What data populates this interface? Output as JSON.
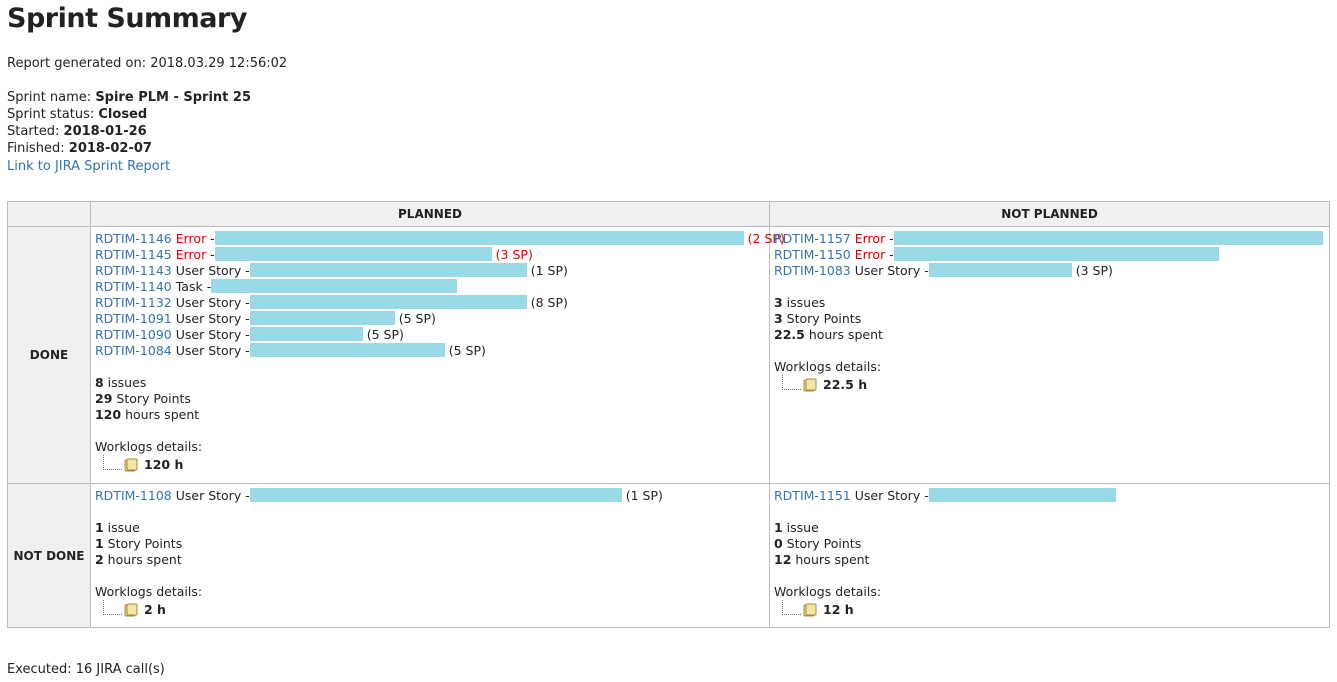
{
  "title": "Sprint Summary",
  "report_generated": {
    "label": "Report generated on: ",
    "value": "2018.03.29 12:56:02"
  },
  "sprint": {
    "name_label": "Sprint name: ",
    "name": "Spire PLM - Sprint 25",
    "status_label": "Sprint status: ",
    "status": "Closed",
    "started_label": "Started: ",
    "started": "2018-01-26",
    "finished_label": "Finished: ",
    "finished": "2018-02-07",
    "jira_link": "Link to JIRA Sprint Report"
  },
  "table": {
    "col_planned": "PLANNED",
    "col_not_planned": "NOT PLANNED",
    "row_done": "DONE",
    "row_not_done": "NOT DONE",
    "worklogs_label": "Worklogs details:",
    "done_planned": {
      "issues": [
        {
          "key": "RDTIM-1146",
          "type": "Error",
          "sp": "(2 SP)",
          "error": true,
          "bar": 0.84
        },
        {
          "key": "RDTIM-1145",
          "type": "Error",
          "sp": "(3 SP)",
          "error": true,
          "bar": 0.44
        },
        {
          "key": "RDTIM-1143",
          "type": "User Story",
          "sp": "(1 SP)",
          "error": false,
          "bar": 0.44
        },
        {
          "key": "RDTIM-1140",
          "type": "Task",
          "sp": "",
          "error": false,
          "bar": 0.39
        },
        {
          "key": "RDTIM-1132",
          "type": "User Story",
          "sp": "(8 SP)",
          "error": false,
          "bar": 0.44
        },
        {
          "key": "RDTIM-1091",
          "type": "User Story",
          "sp": "(5 SP)",
          "error": false,
          "bar": 0.23
        },
        {
          "key": "RDTIM-1090",
          "type": "User Story",
          "sp": "(5 SP)",
          "error": false,
          "bar": 0.18
        },
        {
          "key": "RDTIM-1084",
          "type": "User Story",
          "sp": "(5 SP)",
          "error": false,
          "bar": 0.31
        }
      ],
      "issues_count": "8",
      "issues_text": " issues",
      "points": "29",
      "points_text": " Story Points",
      "hours": "120",
      "hours_text": " hours spent",
      "worklog": "120 h"
    },
    "done_not_planned": {
      "issues": [
        {
          "key": "RDTIM-1157",
          "type": "Error",
          "sp": "",
          "error": true,
          "bar": 0.78
        },
        {
          "key": "RDTIM-1150",
          "type": "Error",
          "sp": "",
          "error": true,
          "bar": 0.59
        },
        {
          "key": "RDTIM-1083",
          "type": "User Story",
          "sp": "(3 SP)",
          "error": false,
          "bar": 0.26
        }
      ],
      "issues_count": "3",
      "issues_text": " issues",
      "points": "3",
      "points_text": " Story Points",
      "hours": "22.5",
      "hours_text": " hours spent",
      "worklog": "22.5 h"
    },
    "not_done_planned": {
      "issues": [
        {
          "key": "RDTIM-1108",
          "type": "User Story",
          "sp": "(1 SP)",
          "error": false,
          "bar": 0.59
        }
      ],
      "issues_count": "1",
      "issues_text": " issue",
      "points": "1",
      "points_text": " Story Points",
      "hours": "2",
      "hours_text": " hours spent",
      "worklog": "2 h"
    },
    "not_done_not_planned": {
      "issues": [
        {
          "key": "RDTIM-1151",
          "type": "User Story",
          "sp": "",
          "error": false,
          "bar": 0.34
        }
      ],
      "issues_count": "1",
      "issues_text": " issue",
      "points": "0",
      "points_text": " Story Points",
      "hours": "12",
      "hours_text": " hours spent",
      "worklog": "12 h"
    }
  },
  "footer": "Executed: 16 JIRA call(s)",
  "colors": {
    "link": "#3572b0",
    "error": "#dd0000",
    "bar": "#9ad9e8"
  },
  "icons": {
    "worklog": "folder-icon"
  }
}
